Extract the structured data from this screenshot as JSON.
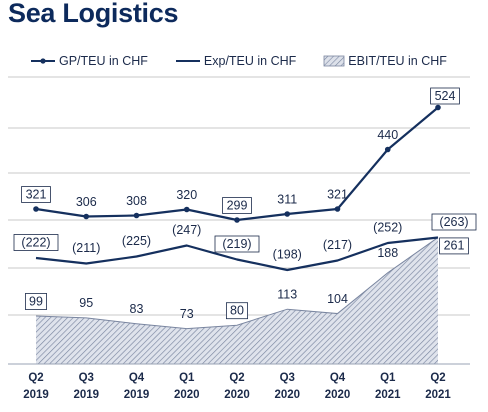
{
  "title": "Sea Logistics",
  "colors": {
    "line": "#15305e",
    "fill": "#cfd4e0",
    "hatch": "#7a86a0",
    "grid": "#c8c8c8",
    "text": "#1b2a4a"
  },
  "chart_data": {
    "type": "line",
    "categories": [
      [
        "Q2",
        "2019"
      ],
      [
        "Q3",
        "2019"
      ],
      [
        "Q4",
        "2019"
      ],
      [
        "Q1",
        "2020"
      ],
      [
        "Q2",
        "2020"
      ],
      [
        "Q3",
        "2020"
      ],
      [
        "Q4",
        "2020"
      ],
      [
        "Q1",
        "2021"
      ],
      [
        "Q2",
        "2021"
      ]
    ],
    "series": [
      {
        "name": "GP/TEU in CHF",
        "kind": "line-markers",
        "values": [
          321,
          306,
          308,
          320,
          299,
          311,
          321,
          440,
          524
        ],
        "labels": [
          "321",
          "306",
          "308",
          "320",
          "299",
          "311",
          "321",
          "440",
          "524"
        ],
        "boxed": [
          0,
          4,
          8
        ]
      },
      {
        "name": "Exp/TEU in CHF",
        "kind": "line",
        "values": [
          -222,
          -211,
          -225,
          -247,
          -219,
          -198,
          -217,
          -252,
          -263
        ],
        "labels": [
          "(222)",
          "(211)",
          "(225)",
          "(247)",
          "(219)",
          "(198)",
          "(217)",
          "(252)",
          "(263)"
        ],
        "boxed": [
          0,
          4,
          8
        ]
      },
      {
        "name": "EBIT/TEU in CHF",
        "kind": "hatched-area",
        "values": [
          99,
          95,
          83,
          73,
          80,
          113,
          104,
          188,
          261
        ],
        "labels": [
          "99",
          "95",
          "83",
          "73",
          "80",
          "113",
          "104",
          "188",
          "261"
        ],
        "boxed": [
          0,
          4,
          8
        ]
      }
    ],
    "grid": true,
    "legend": "top"
  }
}
